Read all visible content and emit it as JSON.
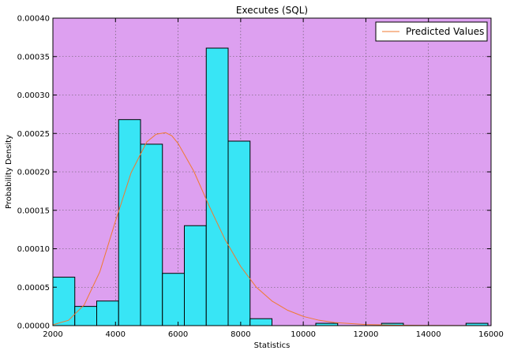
{
  "chart_data": {
    "type": "bar",
    "title": "Executes (SQL)",
    "xlabel": "Statistics",
    "ylabel": "Probability Density",
    "xlim": [
      2000,
      16000
    ],
    "ylim": [
      0,
      0.0004
    ],
    "grid": true,
    "legend_position": "top-right",
    "xticks": [
      2000,
      4000,
      6000,
      8000,
      10000,
      12000,
      14000,
      16000
    ],
    "xtick_labels": [
      "2000",
      "4000",
      "6000",
      "8000",
      "10000",
      "12000",
      "14000",
      "16000"
    ],
    "yticks": [
      0,
      5e-05,
      0.0001,
      0.00015,
      0.0002,
      0.00025,
      0.0003,
      0.00035,
      0.0004
    ],
    "ytick_labels": [
      "0.00000",
      "0.00005",
      "0.00010",
      "0.00015",
      "0.00020",
      "0.00025",
      "0.00030",
      "0.00035",
      "0.00040"
    ],
    "colors": {
      "plot_background": "#dda0f0",
      "bar_fill": "#38e5f5",
      "line": "#f07a30"
    },
    "histogram": {
      "bins": [
        {
          "x0": 2000,
          "x1": 2700,
          "value": 6.3e-05
        },
        {
          "x0": 2700,
          "x1": 3400,
          "value": 2.5e-05
        },
        {
          "x0": 3400,
          "x1": 4100,
          "value": 3.2e-05
        },
        {
          "x0": 4100,
          "x1": 4800,
          "value": 0.000268
        },
        {
          "x0": 4800,
          "x1": 5500,
          "value": 0.000236
        },
        {
          "x0": 5500,
          "x1": 6200,
          "value": 6.8e-05
        },
        {
          "x0": 6200,
          "x1": 6900,
          "value": 0.00013
        },
        {
          "x0": 6900,
          "x1": 7600,
          "value": 0.000361
        },
        {
          "x0": 7600,
          "x1": 8300,
          "value": 0.00024
        },
        {
          "x0": 8300,
          "x1": 9000,
          "value": 9e-06
        },
        {
          "x0": 10400,
          "x1": 11100,
          "value": 3e-06
        },
        {
          "x0": 12500,
          "x1": 13200,
          "value": 3e-06
        },
        {
          "x0": 15200,
          "x1": 15900,
          "value": 3e-06
        }
      ]
    },
    "series": [
      {
        "name": "Predicted Values",
        "type": "line",
        "x": [
          2000,
          2500,
          3000,
          3500,
          4000,
          4500,
          5000,
          5300,
          5600,
          5800,
          6000,
          6500,
          7000,
          7500,
          8000,
          8500,
          9000,
          9500,
          10000,
          10500,
          11000,
          12000,
          13000,
          14000,
          15000,
          15900
        ],
        "y": [
          1e-06,
          7e-06,
          2.7e-05,
          7e-05,
          0.000136,
          0.000199,
          0.000239,
          0.000249,
          0.000251,
          0.000247,
          0.000237,
          0.000201,
          0.000155,
          0.000112,
          7.7e-05,
          5e-05,
          3.2e-05,
          2e-05,
          1.2e-05,
          7e-06,
          4e-06,
          1.4e-06,
          5e-07,
          2e-07,
          1e-07,
          4e-08
        ]
      }
    ]
  }
}
